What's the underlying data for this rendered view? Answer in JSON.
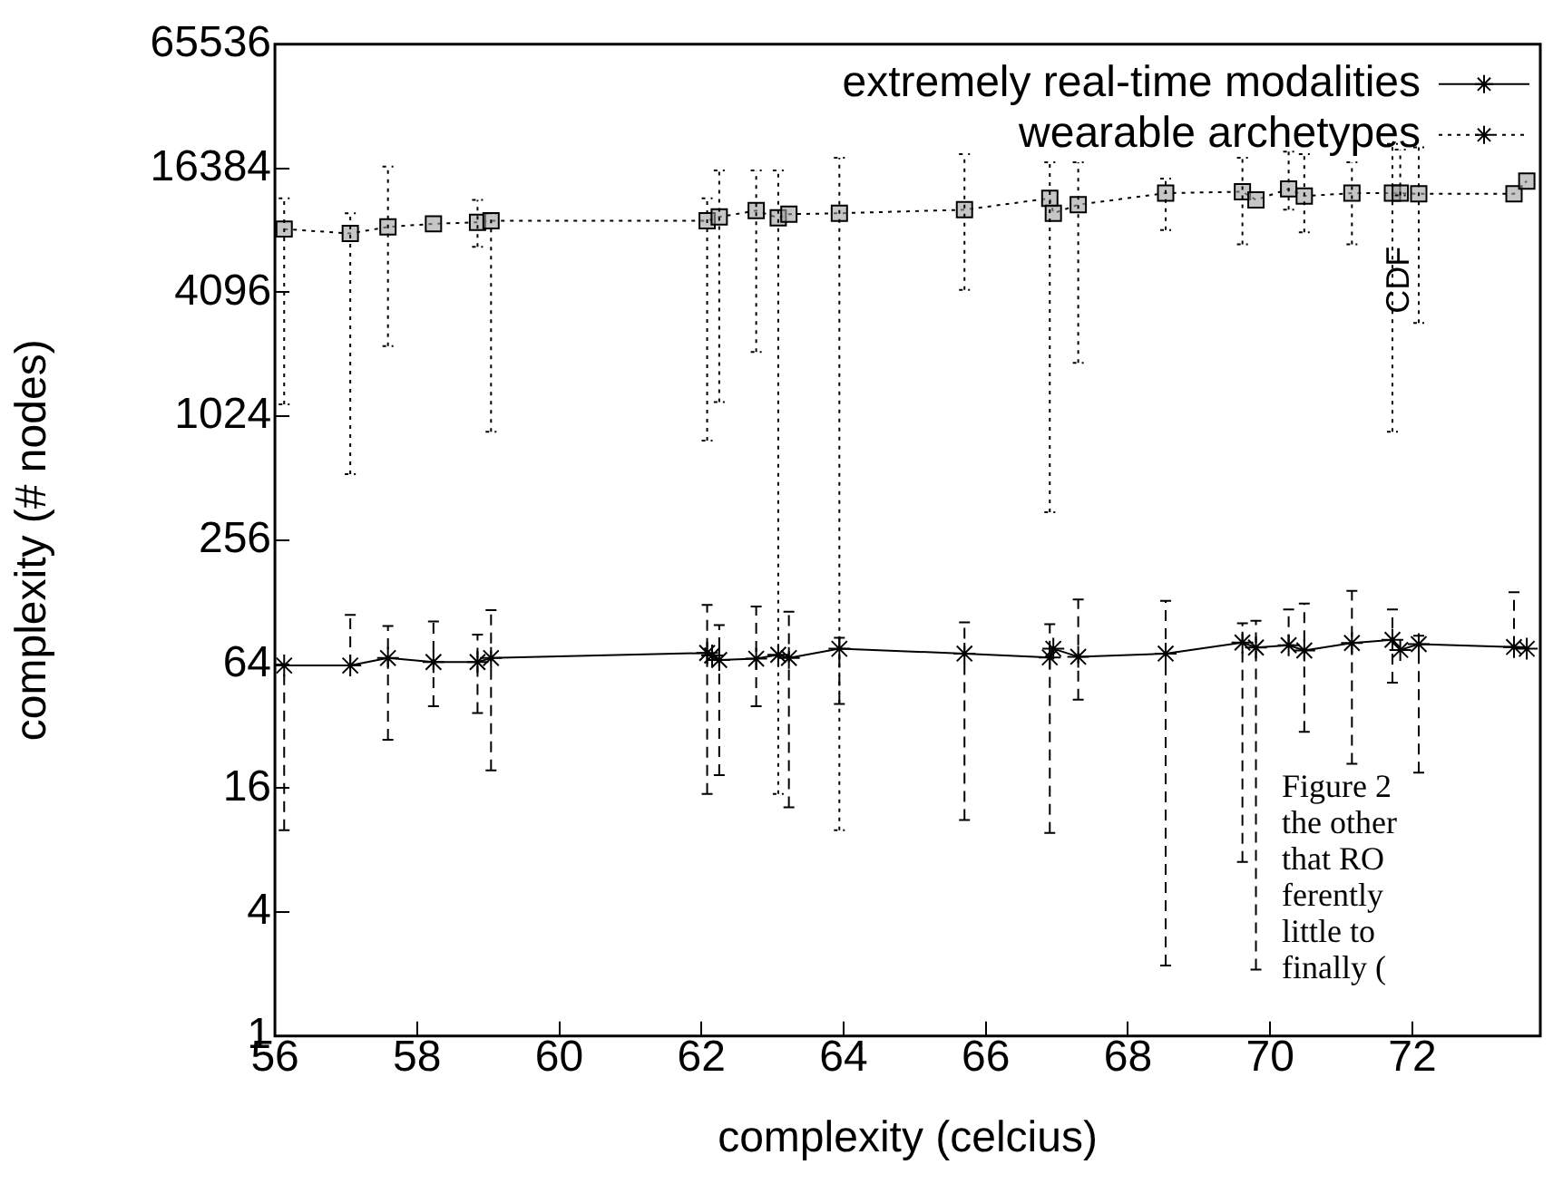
{
  "chart_data": {
    "type": "line",
    "xlabel": "complexity (celcius)",
    "ylabel": "complexity (# nodes)",
    "log": "y",
    "xlim": [
      56,
      73.8
    ],
    "xticks": [
      56,
      58,
      60,
      62,
      64,
      66,
      68,
      70,
      72
    ],
    "ylim": [
      1,
      65536
    ],
    "yticks": [
      1,
      4,
      16,
      64,
      256,
      1024,
      4096,
      16384,
      65536
    ],
    "grid": false,
    "legend": "top right",
    "annotations": [
      "CDF",
      "Figure 2",
      "the other",
      "that RO",
      "ferently",
      "little to",
      "finally ("
    ],
    "series": [
      {
        "name": "extremely real-time modalities",
        "color": "#000000",
        "line_style": "solid",
        "marker": "cross",
        "x": [
          56.13,
          57.06,
          57.59,
          58.23,
          58.85,
          59.04,
          62.08,
          62.15,
          62.25,
          62.77,
          63.08,
          63.23,
          63.94,
          65.7,
          66.9,
          66.95,
          67.3,
          68.53,
          69.61,
          69.8,
          70.26,
          70.48,
          71.15,
          71.72,
          71.83,
          72.09,
          73.43,
          73.61
        ],
        "values": [
          63,
          63,
          68.5,
          65.5,
          65.5,
          68.5,
          72.5,
          70.5,
          67,
          68,
          71,
          68.5,
          76,
          72,
          69,
          76,
          69.5,
          72,
          81.5,
          77,
          79,
          74.5,
          81,
          84,
          75,
          80,
          77.5,
          76
        ],
        "errors": [
          [
            10,
            63
          ],
          [
            63,
            111
          ],
          [
            27.5,
            98
          ],
          [
            40,
            103
          ],
          [
            37,
            89
          ],
          [
            19.5,
            117
          ],
          [
            15,
            124
          ],
          null,
          [
            18.5,
            99
          ],
          [
            40,
            122
          ],
          null,
          [
            12.9,
            115
          ],
          [
            41,
            86
          ],
          [
            11.2,
            102
          ],
          [
            9.7,
            100
          ],
          null,
          [
            43,
            132
          ],
          [
            2.2,
            130
          ],
          [
            7,
            101
          ],
          [
            2.1,
            104
          ],
          [
            79,
            118
          ],
          [
            30,
            126
          ],
          [
            21,
            145
          ],
          [
            52,
            118
          ],
          null,
          [
            19,
            88
          ],
          [
            77.5,
            143
          ],
          null
        ]
      },
      {
        "name": "wearable archetypes",
        "color": "#000000",
        "line_style": "dotted",
        "marker": "square",
        "x": [
          56.13,
          57.06,
          57.59,
          58.23,
          58.85,
          59.04,
          62.08,
          62.25,
          62.77,
          63.08,
          63.23,
          63.94,
          65.7,
          66.9,
          66.95,
          67.3,
          68.53,
          69.61,
          69.8,
          70.26,
          70.48,
          71.15,
          71.72,
          71.83,
          72.09,
          73.43,
          73.61
        ],
        "values": [
          8300,
          7900,
          8500,
          8800,
          8950,
          9100,
          9100,
          9500,
          10200,
          9400,
          9800,
          9900,
          10300,
          11700,
          9900,
          10900,
          12400,
          12600,
          11500,
          13000,
          12000,
          12400,
          12400,
          12400,
          12300,
          12300,
          14200
        ],
        "errors": [
          [
            1170,
            11700
          ],
          [
            535,
            9900
          ],
          [
            2240,
            16700
          ],
          null,
          [
            6800,
            11500
          ],
          [
            860,
            9900
          ],
          [
            780,
            11700
          ],
          [
            1200,
            16000
          ],
          [
            2100,
            16000
          ],
          [
            15,
            16000
          ],
          null,
          [
            10,
            18400
          ],
          [
            4200,
            19200
          ],
          [
            350,
            17500
          ],
          null,
          [
            1860,
            17500
          ],
          [
            8200,
            14600
          ],
          [
            7000,
            18400
          ],
          null,
          [
            10300,
            19700
          ],
          [
            8000,
            19200
          ],
          [
            7000,
            17500
          ],
          [
            860,
            21500
          ],
          [
            12100,
            20200
          ],
          [
            2900,
            20700
          ],
          null,
          null
        ]
      }
    ]
  }
}
